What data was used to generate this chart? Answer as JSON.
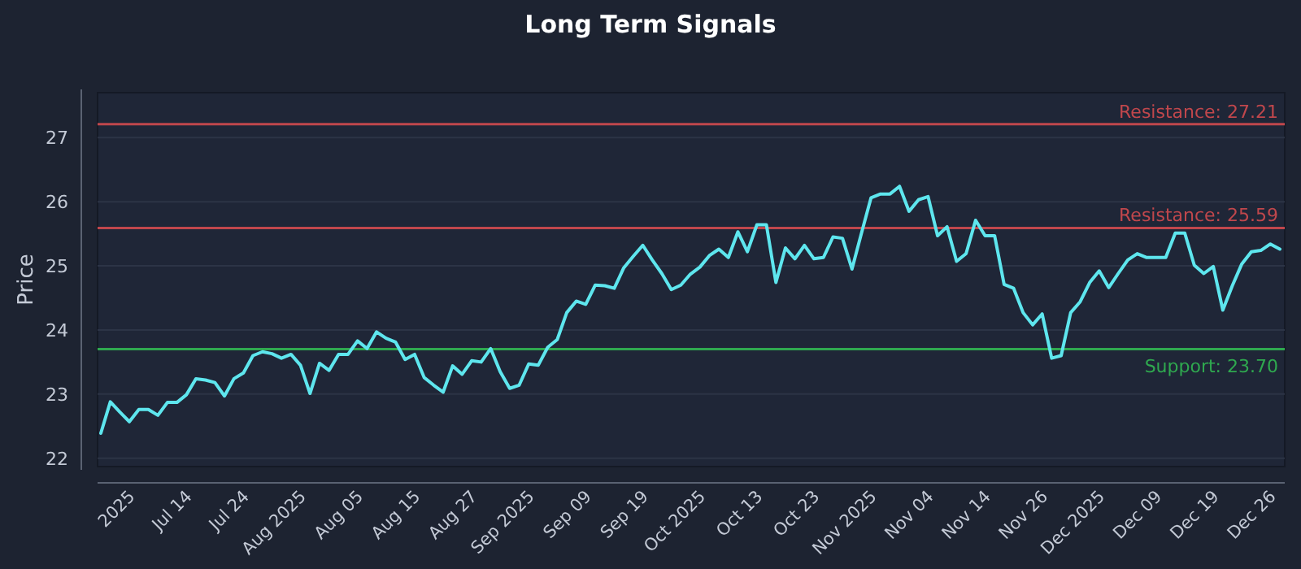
{
  "chart_data": {
    "type": "line",
    "title": "Long Term Signals",
    "ylabel": "Price",
    "categories": [
      null,
      null,
      null,
      "2025",
      null,
      null,
      null,
      null,
      null,
      "Jul 14",
      null,
      null,
      null,
      null,
      null,
      "Jul 24",
      null,
      null,
      null,
      null,
      null,
      "Aug 2025",
      null,
      null,
      null,
      null,
      null,
      "Aug 05",
      null,
      null,
      null,
      null,
      null,
      "Aug 15",
      null,
      null,
      null,
      null,
      null,
      "Aug 27",
      null,
      null,
      null,
      null,
      null,
      "Sep 2025",
      null,
      null,
      null,
      null,
      null,
      "Sep 09",
      null,
      null,
      null,
      null,
      null,
      "Sep 19",
      null,
      null,
      null,
      null,
      null,
      "Oct 2025",
      null,
      null,
      null,
      null,
      null,
      "Oct 13",
      null,
      null,
      null,
      null,
      null,
      "Oct 23",
      null,
      null,
      null,
      null,
      null,
      "Nov 2025",
      null,
      null,
      null,
      null,
      null,
      "Nov 04",
      null,
      null,
      null,
      null,
      null,
      "Nov 14",
      null,
      null,
      null,
      null,
      null,
      "Nov 26",
      null,
      null,
      null,
      null,
      null,
      "Dec 2025",
      null,
      null,
      null,
      null,
      null,
      "Dec 09",
      null,
      null,
      null,
      null,
      null,
      "Dec 19",
      null,
      null,
      null,
      null,
      null,
      "Dec 26",
      null
    ],
    "series": [
      {
        "color": "#5ee6ee",
        "values": [
          22.39,
          22.88,
          22.72,
          22.57,
          22.76,
          22.76,
          22.67,
          22.87,
          22.87,
          22.99,
          23.24,
          23.22,
          23.18,
          22.97,
          23.24,
          23.33,
          23.6,
          23.66,
          23.63,
          23.56,
          23.62,
          23.45,
          23.01,
          23.48,
          23.37,
          23.62,
          23.62,
          23.83,
          23.71,
          23.97,
          23.87,
          23.81,
          23.54,
          23.62,
          23.26,
          23.14,
          23.03,
          23.44,
          23.31,
          23.52,
          23.5,
          23.71,
          23.35,
          23.09,
          23.14,
          23.47,
          23.45,
          23.73,
          23.85,
          24.27,
          24.45,
          24.4,
          24.7,
          24.69,
          24.65,
          24.97,
          25.15,
          25.32,
          25.09,
          24.88,
          24.63,
          24.7,
          24.87,
          24.98,
          25.16,
          25.26,
          25.13,
          25.53,
          25.22,
          25.64,
          25.64,
          24.74,
          25.28,
          25.11,
          25.32,
          25.11,
          25.13,
          25.45,
          25.43,
          24.95,
          25.51,
          26.06,
          26.12,
          26.12,
          26.24,
          25.85,
          26.03,
          26.08,
          25.47,
          25.61,
          25.07,
          25.19,
          25.71,
          25.47,
          25.47,
          24.71,
          24.65,
          24.27,
          24.08,
          24.25,
          23.56,
          23.6,
          24.27,
          24.44,
          24.74,
          24.92,
          24.66,
          24.88,
          25.09,
          25.19,
          25.13,
          25.13,
          25.13,
          25.51,
          25.51,
          25.01,
          24.88,
          24.99,
          24.31,
          24.69,
          25.03,
          25.22,
          25.24,
          25.34,
          25.26
        ]
      }
    ],
    "ylim": [
      21.87,
      27.7
    ],
    "yticks": [
      22,
      23,
      24,
      25,
      26,
      27
    ],
    "grid": "y",
    "line_style": "solid",
    "marker": "none",
    "ref_lines": [
      {
        "axis": "y",
        "value": 27.21,
        "label": "Resistance: 27.21",
        "color": "#c0474c"
      },
      {
        "axis": "y",
        "value": 25.59,
        "label": "Resistance: 25.59",
        "color": "#c0474c"
      },
      {
        "axis": "y",
        "value": 23.7,
        "label": "Support: 23.70",
        "color": "#2fa84f"
      }
    ]
  }
}
